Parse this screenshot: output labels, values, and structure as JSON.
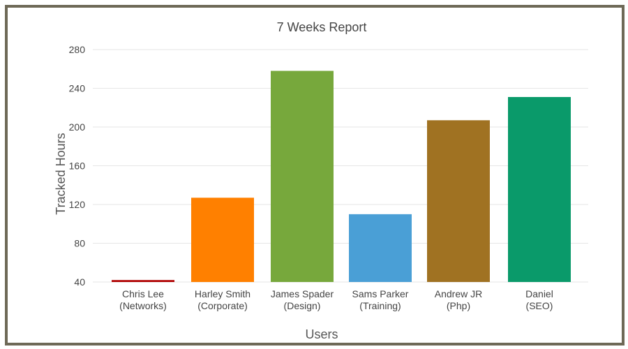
{
  "chart_data": {
    "type": "bar",
    "title": "7 Weeks Report",
    "xlabel": "Users",
    "ylabel": "Tracked Hours",
    "ylim": [
      40,
      280
    ],
    "yticks": [
      40,
      80,
      120,
      160,
      200,
      240,
      280
    ],
    "categories": [
      [
        "Chris Lee",
        "(Networks)"
      ],
      [
        "Harley Smith",
        "(Corporate)"
      ],
      [
        "James Spader",
        "(Design)"
      ],
      [
        "Sams Parker",
        "(Training)"
      ],
      [
        "Andrew JR",
        "(Php)"
      ],
      [
        "Daniel",
        "(SEO)"
      ]
    ],
    "values": [
      42,
      127,
      258,
      110,
      207,
      231
    ],
    "colors": [
      "#b00000",
      "#ff8000",
      "#77a83c",
      "#4a9fd6",
      "#a07222",
      "#0a9a6a"
    ],
    "grid": true,
    "legend": "none"
  }
}
